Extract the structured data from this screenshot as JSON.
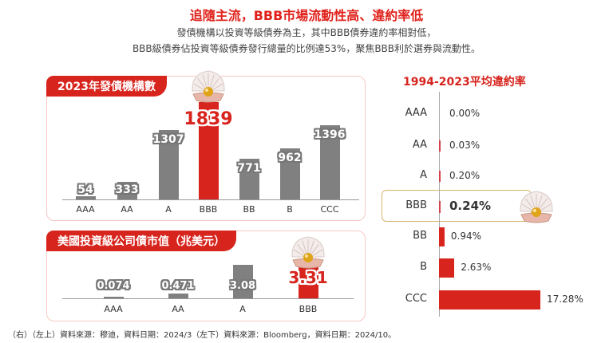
{
  "title": "追隨主流，BBB市場流動性高、違約率低",
  "subtitle": [
    "發債機構以投資等級債券為主，其中BBB債券違約率相對低，",
    "BBB級債券佔投資等級債券發行總量的比例達53%，聚焦BBB利於選券與流動性。"
  ],
  "footer": "（右）（左上）資料來源：穆迪，資料日期：2024/3（左下）資料來源：Bloomberg，資料日期：2024/10。",
  "colors": {
    "highlight": "#d7241d",
    "bar": "#808080",
    "panel_border": "#f6c9c4",
    "highlight_box": "#d8b56a"
  },
  "icons": {
    "highlight_marker": "pearl-shell-icon"
  },
  "chart_data": [
    {
      "type": "bar",
      "title": "2023年發債機構數",
      "categories": [
        "AAA",
        "AA",
        "A",
        "BBB",
        "BB",
        "B",
        "CCC"
      ],
      "values": [
        54,
        333,
        1307,
        1839,
        771,
        962,
        1396
      ],
      "value_labels": [
        "54",
        "333",
        "1307",
        "1839",
        "771",
        "962",
        "1396"
      ],
      "highlight": "BBB",
      "grid": false
    },
    {
      "type": "bar",
      "title": "美國投資級公司債市值（兆美元）",
      "categories": [
        "AAA",
        "AA",
        "A",
        "BBB"
      ],
      "values": [
        0.074,
        0.471,
        3.08,
        3.31
      ],
      "value_labels": [
        "0.074",
        "0.471",
        "3.08",
        "3.31"
      ],
      "highlight": "BBB",
      "grid": false
    },
    {
      "type": "bar",
      "orientation": "horizontal",
      "title": "1994-2023平均違約率",
      "categories": [
        "AAA",
        "AA",
        "A",
        "BBB",
        "BB",
        "B",
        "CCC"
      ],
      "values": [
        0.0,
        0.03,
        0.2,
        0.24,
        0.94,
        2.63,
        17.28
      ],
      "value_labels": [
        "0.00%",
        "0.03%",
        "0.20%",
        "0.24%",
        "0.94%",
        "2.63%",
        "17.28%"
      ],
      "unit": "%",
      "highlight": "BBB",
      "grid": false
    }
  ]
}
